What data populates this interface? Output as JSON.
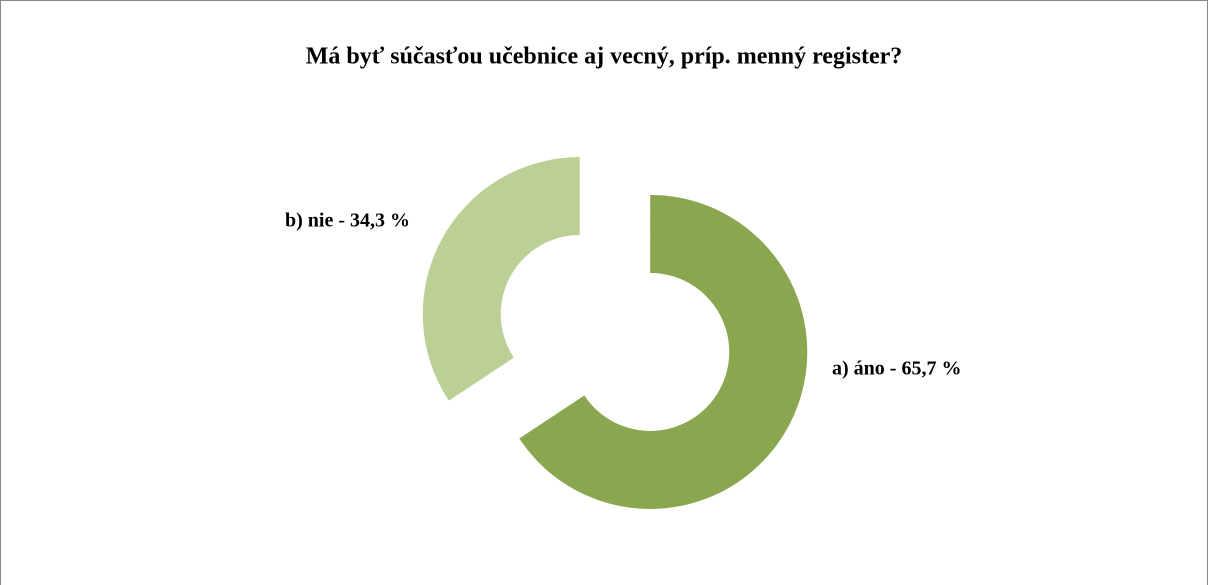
{
  "chart_data": {
    "type": "donut",
    "title": "Má byť súčasťou učebnice aj vecný, príp. menný register?",
    "values": [
      65.7,
      34.3
    ],
    "value_labels": [
      "a) áno - 65,7 %",
      "b) nie - 34,3 %"
    ],
    "colors": [
      "#8aa750",
      "#bcd096"
    ]
  }
}
